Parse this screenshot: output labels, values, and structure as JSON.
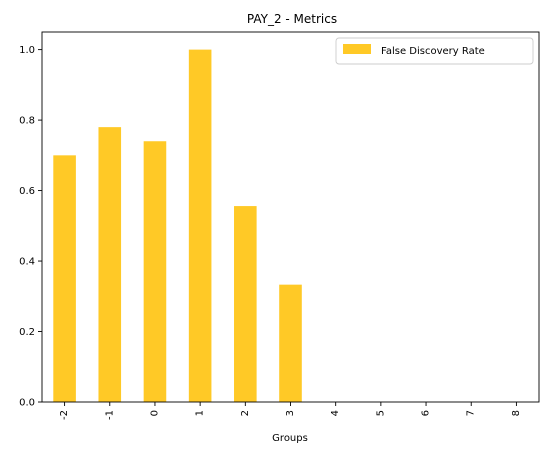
{
  "chart_data": {
    "type": "bar",
    "title": "PAY_2 - Metrics",
    "xlabel": "Groups",
    "ylabel": "",
    "categories": [
      "-2",
      "-1",
      "0",
      "1",
      "2",
      "3",
      "4",
      "5",
      "6",
      "7",
      "8"
    ],
    "series": [
      {
        "name": "False Discovery Rate",
        "color": "#FFC926",
        "values": [
          0.7,
          0.78,
          0.74,
          1.0,
          0.556,
          0.333,
          0,
          0,
          0,
          0,
          0
        ]
      }
    ],
    "ylim": [
      0,
      1.05
    ],
    "yticks": [
      "0.0",
      "0.2",
      "0.4",
      "0.6",
      "0.8",
      "1.0"
    ],
    "grid": false,
    "legend_position": "top-right"
  }
}
